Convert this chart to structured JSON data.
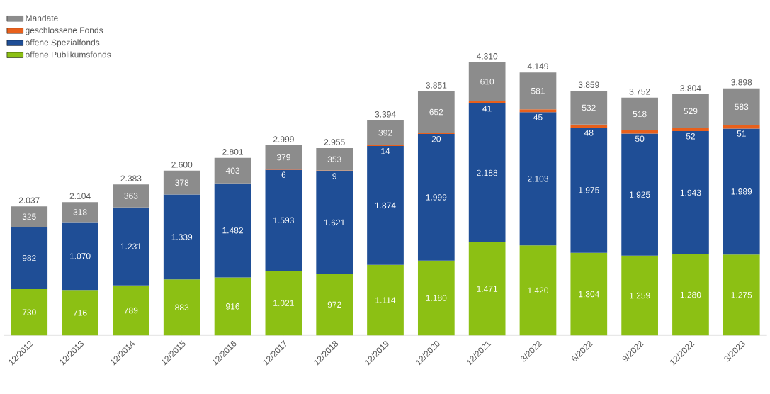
{
  "chart_data": {
    "type": "bar",
    "stacked": true,
    "legend": "top left",
    "categories": [
      "12/2012",
      "12/2013",
      "12/2014",
      "12/2015",
      "12/2016",
      "12/2017",
      "12/2018",
      "12/2019",
      "12/2020",
      "12/2021",
      "3/2022",
      "6/2022",
      "9/2022",
      "12/2022",
      "3/2023"
    ],
    "series": [
      {
        "name": "offene Publikumsfonds",
        "color": "#8cc014",
        "values": [
          730,
          716,
          789,
          883,
          916,
          1021,
          972,
          1114,
          1180,
          1471,
          1420,
          1304,
          1259,
          1280,
          1275
        ],
        "value_labels": [
          "730",
          "716",
          "789",
          "883",
          "916",
          "1.021",
          "972",
          "1.114",
          "1.180",
          "1.471",
          "1.420",
          "1.304",
          "1.259",
          "1.280",
          "1.275"
        ]
      },
      {
        "name": "offene Spezialfonds",
        "color": "#1f4e96",
        "values": [
          982,
          1070,
          1231,
          1339,
          1482,
          1593,
          1621,
          1874,
          1999,
          2188,
          2103,
          1975,
          1925,
          1943,
          1989
        ],
        "value_labels": [
          "982",
          "1.070",
          "1.231",
          "1.339",
          "1.482",
          "1.593",
          "1.621",
          "1.874",
          "1.999",
          "2.188",
          "2.103",
          "1.975",
          "1.925",
          "1.943",
          "1.989"
        ]
      },
      {
        "name": "geschlossene Fonds",
        "color": "#e8601c",
        "values": [
          null,
          null,
          null,
          null,
          null,
          6,
          9,
          14,
          20,
          41,
          45,
          48,
          50,
          52,
          51
        ],
        "value_labels": [
          null,
          null,
          null,
          null,
          null,
          "6",
          "9",
          "14",
          "20",
          "41",
          "45",
          "48",
          "50",
          "52",
          "51"
        ]
      },
      {
        "name": "Mandate",
        "color": "#8c8c8c",
        "values": [
          325,
          318,
          363,
          378,
          403,
          379,
          353,
          392,
          652,
          610,
          581,
          532,
          518,
          529,
          583
        ],
        "value_labels": [
          "325",
          "318",
          "363",
          "378",
          "403",
          "379",
          "353",
          "392",
          "652",
          "610",
          "581",
          "532",
          "518",
          "529",
          "583"
        ]
      }
    ],
    "totals": [
      "2.037",
      "2.104",
      "2.383",
      "2.600",
      "2.801",
      "2.999",
      "2.955",
      "3.394",
      "3.851",
      "4.310",
      "4.149",
      "3.859",
      "3.752",
      "3.804",
      "3.898"
    ]
  }
}
